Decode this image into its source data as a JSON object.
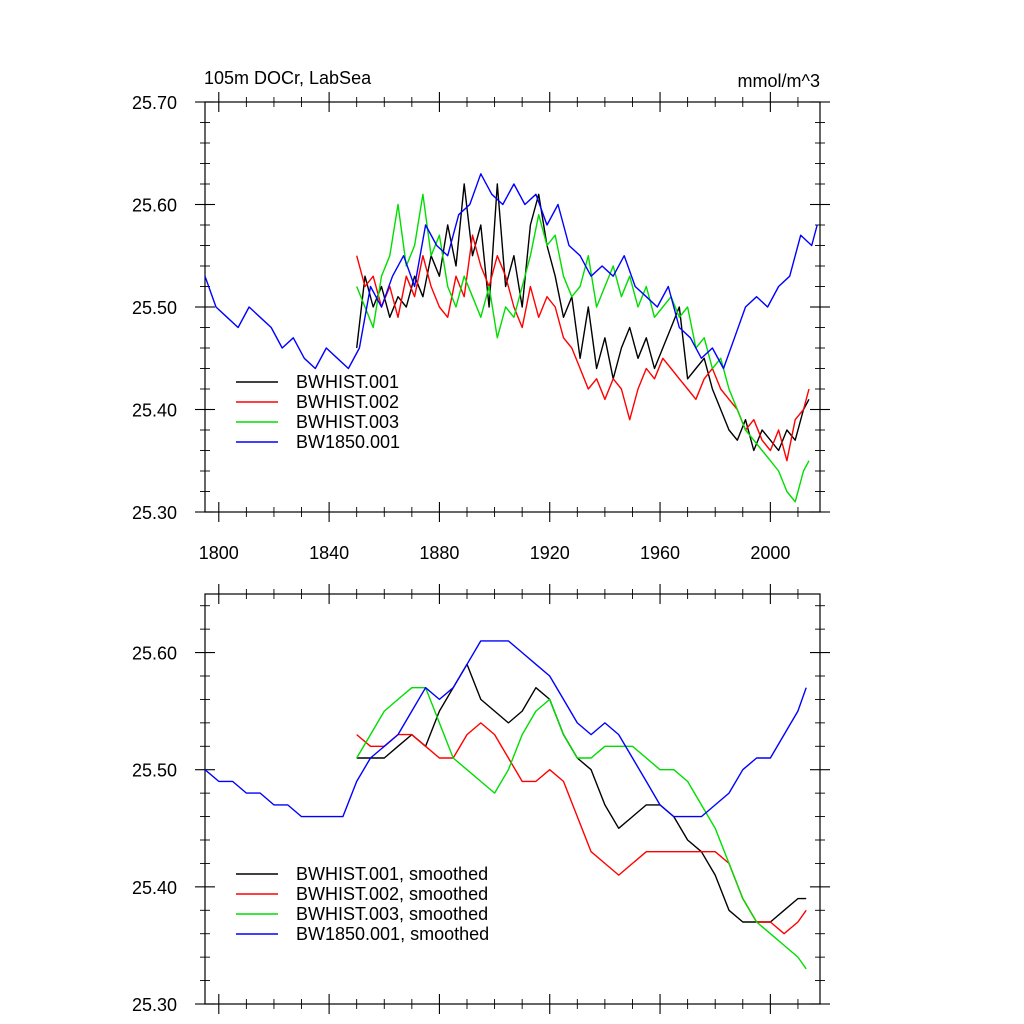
{
  "chart_data": [
    {
      "type": "line",
      "title": "105m DOCr, LabSea",
      "units": "mmol/m^3",
      "xlim": [
        1795,
        2018
      ],
      "ylim": [
        25.3,
        25.7
      ],
      "xticks": [
        1800,
        1840,
        1880,
        1920,
        1960,
        2000
      ],
      "xtick_labels": [
        "1800",
        "1840",
        "1880",
        "1920",
        "1960",
        "2000"
      ],
      "yticks": [
        25.3,
        25.4,
        25.5,
        25.6,
        25.7
      ],
      "ytick_labels": [
        "25.30",
        "25.40",
        "25.50",
        "25.60",
        "25.70"
      ],
      "legend_position": "bottom-left",
      "series": [
        {
          "name": "BWHIST.001",
          "color": "#000000",
          "x": [
            1850,
            1853,
            1856,
            1859,
            1862,
            1865,
            1868,
            1871,
            1874,
            1877,
            1880,
            1883,
            1886,
            1889,
            1892,
            1895,
            1898,
            1901,
            1904,
            1907,
            1910,
            1913,
            1916,
            1919,
            1922,
            1925,
            1928,
            1931,
            1934,
            1937,
            1940,
            1943,
            1946,
            1949,
            1952,
            1955,
            1958,
            1961,
            1964,
            1967,
            1970,
            1973,
            1976,
            1979,
            1982,
            1985,
            1988,
            1991,
            1994,
            1997,
            2000,
            2003,
            2006,
            2009,
            2012,
            2014
          ],
          "y": [
            25.46,
            25.53,
            25.5,
            25.52,
            25.49,
            25.51,
            25.5,
            25.53,
            25.51,
            25.55,
            25.53,
            25.58,
            25.54,
            25.62,
            25.55,
            25.58,
            25.5,
            25.62,
            25.52,
            25.55,
            25.5,
            25.58,
            25.61,
            25.56,
            25.53,
            25.49,
            25.51,
            25.45,
            25.5,
            25.44,
            25.47,
            25.43,
            25.46,
            25.48,
            25.45,
            25.47,
            25.44,
            25.46,
            25.48,
            25.5,
            25.43,
            25.44,
            25.45,
            25.42,
            25.4,
            25.38,
            25.37,
            25.39,
            25.36,
            25.38,
            25.37,
            25.36,
            25.38,
            25.37,
            25.4,
            25.41
          ]
        },
        {
          "name": "BWHIST.002",
          "color": "#ff0000",
          "x": [
            1850,
            1853,
            1856,
            1859,
            1862,
            1865,
            1868,
            1871,
            1874,
            1877,
            1880,
            1883,
            1886,
            1889,
            1892,
            1895,
            1898,
            1901,
            1904,
            1907,
            1910,
            1913,
            1916,
            1919,
            1922,
            1925,
            1928,
            1931,
            1934,
            1937,
            1940,
            1943,
            1946,
            1949,
            1952,
            1955,
            1958,
            1961,
            1964,
            1967,
            1970,
            1973,
            1976,
            1979,
            1982,
            1985,
            1988,
            1991,
            1994,
            1997,
            2000,
            2003,
            2006,
            2009,
            2012,
            2014
          ],
          "y": [
            25.55,
            25.52,
            25.53,
            25.5,
            25.52,
            25.49,
            25.53,
            25.51,
            25.55,
            25.52,
            25.5,
            25.49,
            25.53,
            25.51,
            25.57,
            25.54,
            25.52,
            25.55,
            25.53,
            25.5,
            25.48,
            25.52,
            25.49,
            25.51,
            25.5,
            25.47,
            25.46,
            25.44,
            25.42,
            25.43,
            25.41,
            25.43,
            25.42,
            25.39,
            25.42,
            25.44,
            25.43,
            25.45,
            25.44,
            25.43,
            25.42,
            25.41,
            25.43,
            25.44,
            25.42,
            25.41,
            25.4,
            25.38,
            25.39,
            25.37,
            25.36,
            25.38,
            25.35,
            25.39,
            25.4,
            25.42
          ]
        },
        {
          "name": "BWHIST.003",
          "color": "#00dd00",
          "x": [
            1850,
            1853,
            1856,
            1859,
            1862,
            1865,
            1868,
            1871,
            1874,
            1877,
            1880,
            1883,
            1886,
            1889,
            1892,
            1895,
            1898,
            1901,
            1904,
            1907,
            1910,
            1913,
            1916,
            1919,
            1922,
            1925,
            1928,
            1931,
            1934,
            1937,
            1940,
            1943,
            1946,
            1949,
            1952,
            1955,
            1958,
            1961,
            1964,
            1967,
            1970,
            1973,
            1976,
            1979,
            1982,
            1985,
            1988,
            1991,
            1994,
            1997,
            2000,
            2003,
            2006,
            2009,
            2012,
            2014
          ],
          "y": [
            25.52,
            25.5,
            25.48,
            25.53,
            25.55,
            25.6,
            25.54,
            25.56,
            25.61,
            25.55,
            25.57,
            25.52,
            25.5,
            25.53,
            25.51,
            25.49,
            25.52,
            25.47,
            25.5,
            25.49,
            25.52,
            25.55,
            25.59,
            25.56,
            25.57,
            25.53,
            25.51,
            25.52,
            25.55,
            25.5,
            25.52,
            25.54,
            25.51,
            25.53,
            25.5,
            25.52,
            25.49,
            25.5,
            25.51,
            25.49,
            25.5,
            25.46,
            25.47,
            25.44,
            25.45,
            25.42,
            25.4,
            25.38,
            25.37,
            25.36,
            25.35,
            25.34,
            25.32,
            25.31,
            25.34,
            25.35
          ]
        },
        {
          "name": "BW1850.001",
          "color": "#0000ff",
          "x": [
            1795,
            1799,
            1803,
            1807,
            1811,
            1815,
            1819,
            1823,
            1827,
            1831,
            1835,
            1839,
            1843,
            1847,
            1851,
            1855,
            1859,
            1863,
            1867,
            1871,
            1875,
            1879,
            1883,
            1887,
            1891,
            1895,
            1899,
            1903,
            1907,
            1911,
            1915,
            1919,
            1923,
            1927,
            1931,
            1935,
            1939,
            1943,
            1947,
            1951,
            1955,
            1959,
            1963,
            1967,
            1971,
            1975,
            1979,
            1983,
            1987,
            1991,
            1995,
            1999,
            2003,
            2007,
            2011,
            2015,
            2017
          ],
          "y": [
            25.53,
            25.5,
            25.49,
            25.48,
            25.5,
            25.49,
            25.48,
            25.46,
            25.47,
            25.45,
            25.44,
            25.46,
            25.45,
            25.44,
            25.46,
            25.52,
            25.5,
            25.53,
            25.55,
            25.52,
            25.58,
            25.56,
            25.55,
            25.59,
            25.6,
            25.63,
            25.61,
            25.6,
            25.62,
            25.6,
            25.61,
            25.58,
            25.6,
            25.56,
            25.55,
            25.53,
            25.54,
            25.53,
            25.55,
            25.52,
            25.51,
            25.5,
            25.52,
            25.48,
            25.47,
            25.45,
            25.46,
            25.44,
            25.47,
            25.5,
            25.51,
            25.5,
            25.52,
            25.53,
            25.57,
            25.56,
            25.58
          ]
        }
      ]
    },
    {
      "type": "line",
      "xlim": [
        1795,
        2018
      ],
      "ylim": [
        25.3,
        25.65
      ],
      "yticks": [
        25.3,
        25.4,
        25.5,
        25.6
      ],
      "ytick_labels": [
        "25.30",
        "25.40",
        "25.50",
        "25.60"
      ],
      "legend_position": "bottom-left",
      "series": [
        {
          "name": "BWHIST.001, smoothed",
          "color": "#000000",
          "x": [
            1850,
            1855,
            1860,
            1865,
            1870,
            1875,
            1880,
            1885,
            1890,
            1895,
            1900,
            1905,
            1910,
            1915,
            1920,
            1925,
            1930,
            1935,
            1940,
            1945,
            1950,
            1955,
            1960,
            1965,
            1970,
            1975,
            1980,
            1985,
            1990,
            1995,
            2000,
            2005,
            2010,
            2013
          ],
          "y": [
            25.51,
            25.51,
            25.51,
            25.52,
            25.53,
            25.52,
            25.55,
            25.57,
            25.59,
            25.56,
            25.55,
            25.54,
            25.55,
            25.57,
            25.56,
            25.53,
            25.51,
            25.5,
            25.47,
            25.45,
            25.46,
            25.47,
            25.47,
            25.46,
            25.44,
            25.43,
            25.41,
            25.38,
            25.37,
            25.37,
            25.37,
            25.38,
            25.39,
            25.39
          ]
        },
        {
          "name": "BWHIST.002, smoothed",
          "color": "#ff0000",
          "x": [
            1850,
            1855,
            1860,
            1865,
            1870,
            1875,
            1880,
            1885,
            1890,
            1895,
            1900,
            1905,
            1910,
            1915,
            1920,
            1925,
            1930,
            1935,
            1940,
            1945,
            1950,
            1955,
            1960,
            1965,
            1970,
            1975,
            1980,
            1985,
            1990,
            1995,
            2000,
            2005,
            2010,
            2013
          ],
          "y": [
            25.53,
            25.52,
            25.52,
            25.53,
            25.53,
            25.52,
            25.51,
            25.51,
            25.53,
            25.54,
            25.53,
            25.51,
            25.49,
            25.49,
            25.5,
            25.49,
            25.46,
            25.43,
            25.42,
            25.41,
            25.42,
            25.43,
            25.43,
            25.43,
            25.43,
            25.43,
            25.43,
            25.42,
            25.39,
            25.37,
            25.37,
            25.36,
            25.37,
            25.38
          ]
        },
        {
          "name": "BWHIST.003, smoothed",
          "color": "#00dd00",
          "x": [
            1850,
            1855,
            1860,
            1865,
            1870,
            1875,
            1880,
            1885,
            1890,
            1895,
            1900,
            1905,
            1910,
            1915,
            1920,
            1925,
            1930,
            1935,
            1940,
            1945,
            1950,
            1955,
            1960,
            1965,
            1970,
            1975,
            1980,
            1985,
            1990,
            1995,
            2000,
            2005,
            2010,
            2013
          ],
          "y": [
            25.51,
            25.53,
            25.55,
            25.56,
            25.57,
            25.57,
            25.54,
            25.51,
            25.5,
            25.49,
            25.48,
            25.5,
            25.53,
            25.55,
            25.56,
            25.53,
            25.51,
            25.51,
            25.52,
            25.52,
            25.52,
            25.51,
            25.5,
            25.5,
            25.49,
            25.47,
            25.45,
            25.42,
            25.39,
            25.37,
            25.36,
            25.35,
            25.34,
            25.33
          ]
        },
        {
          "name": "BW1850.001, smoothed",
          "color": "#0000ff",
          "x": [
            1795,
            1800,
            1805,
            1810,
            1815,
            1820,
            1825,
            1830,
            1835,
            1840,
            1845,
            1850,
            1855,
            1860,
            1865,
            1870,
            1875,
            1880,
            1885,
            1890,
            1895,
            1900,
            1905,
            1910,
            1915,
            1920,
            1925,
            1930,
            1935,
            1940,
            1945,
            1950,
            1955,
            1960,
            1965,
            1970,
            1975,
            1980,
            1985,
            1990,
            1995,
            2000,
            2005,
            2010,
            2013
          ],
          "y": [
            25.5,
            25.49,
            25.49,
            25.48,
            25.48,
            25.47,
            25.47,
            25.46,
            25.46,
            25.46,
            25.46,
            25.49,
            25.51,
            25.52,
            25.53,
            25.55,
            25.57,
            25.56,
            25.57,
            25.59,
            25.61,
            25.61,
            25.61,
            25.6,
            25.59,
            25.58,
            25.56,
            25.54,
            25.53,
            25.54,
            25.53,
            25.51,
            25.49,
            25.47,
            25.46,
            25.46,
            25.46,
            25.47,
            25.48,
            25.5,
            25.51,
            25.51,
            25.53,
            25.55,
            25.57
          ]
        }
      ]
    }
  ]
}
